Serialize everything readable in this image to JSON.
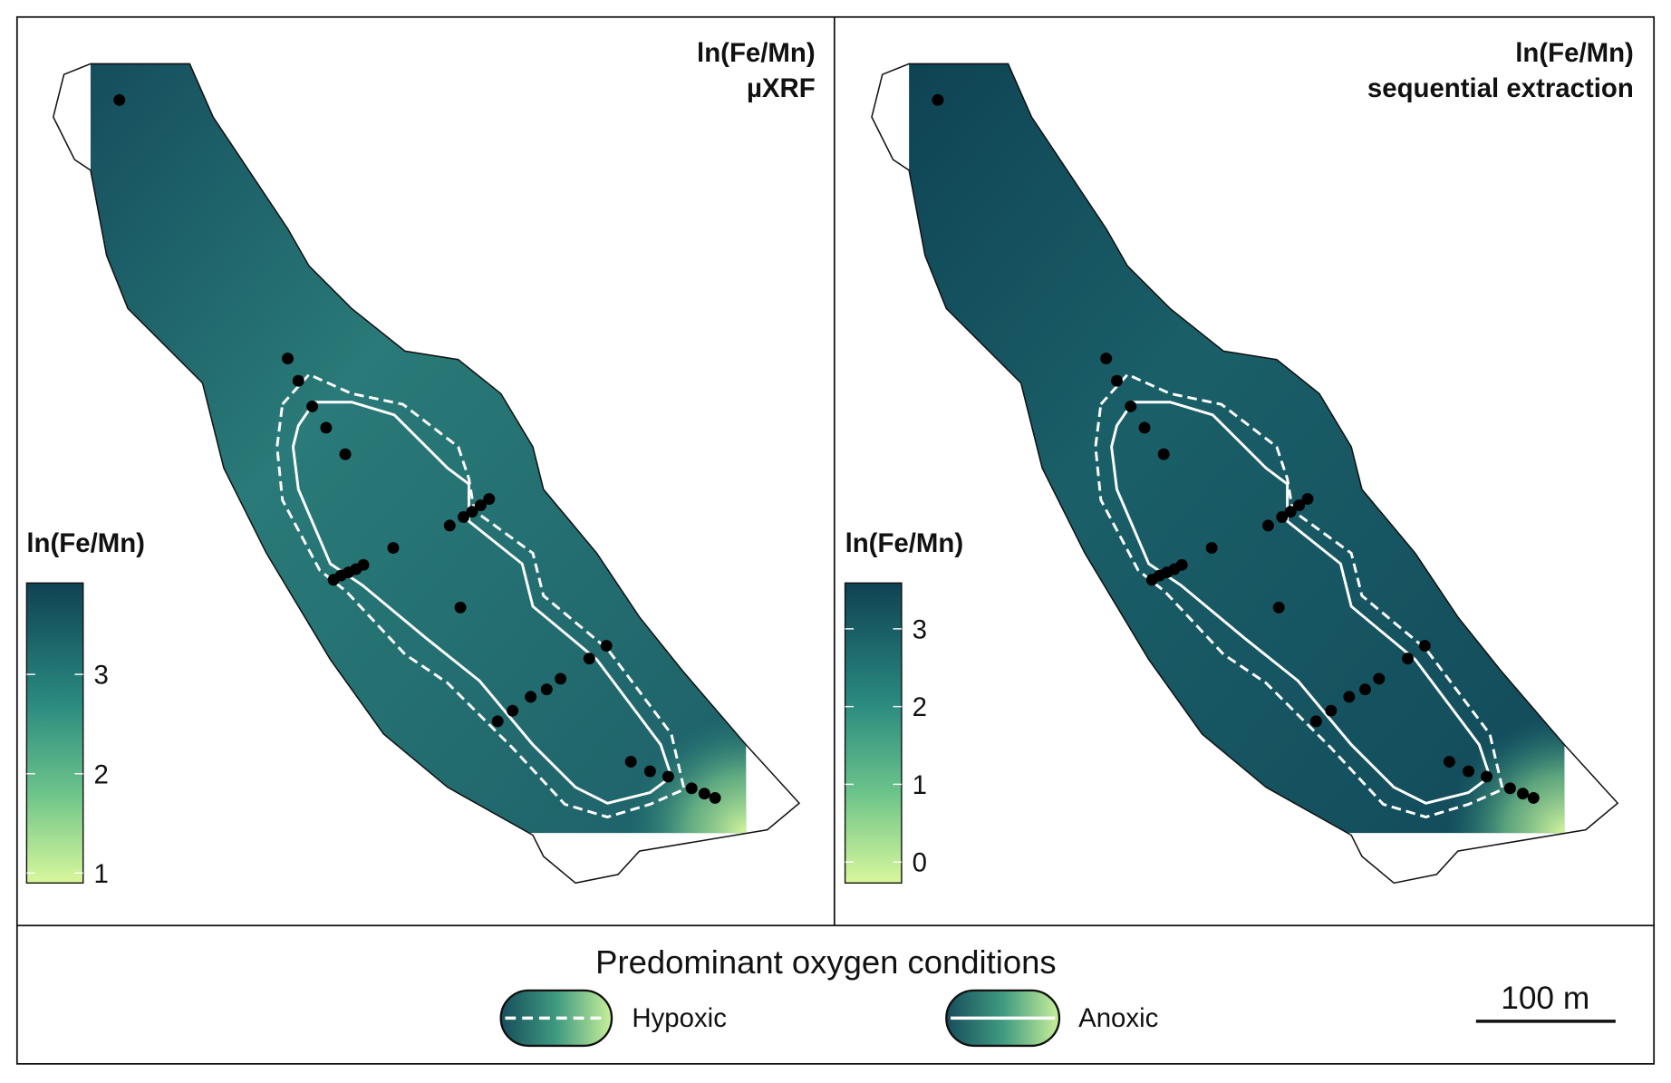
{
  "panels": [
    {
      "title": [
        "ln(Fe/Mn)",
        "µXRF"
      ],
      "colorbar": {
        "title": "ln(Fe/Mn)",
        "lim": [
          0.9,
          3.92
        ],
        "ticks": [
          1,
          2,
          3
        ]
      }
    },
    {
      "title": [
        "ln(Fe/Mn)",
        "sequential extraction"
      ],
      "colorbar": {
        "title": "ln(Fe/Mn)",
        "lim": [
          -0.27,
          3.59
        ],
        "ticks": [
          0,
          1,
          2,
          3
        ]
      }
    }
  ],
  "legend": {
    "title": "Predominant oxygen conditions",
    "items": [
      "Hypoxic",
      "Anoxic"
    ]
  },
  "scale_bar": "100 m"
}
